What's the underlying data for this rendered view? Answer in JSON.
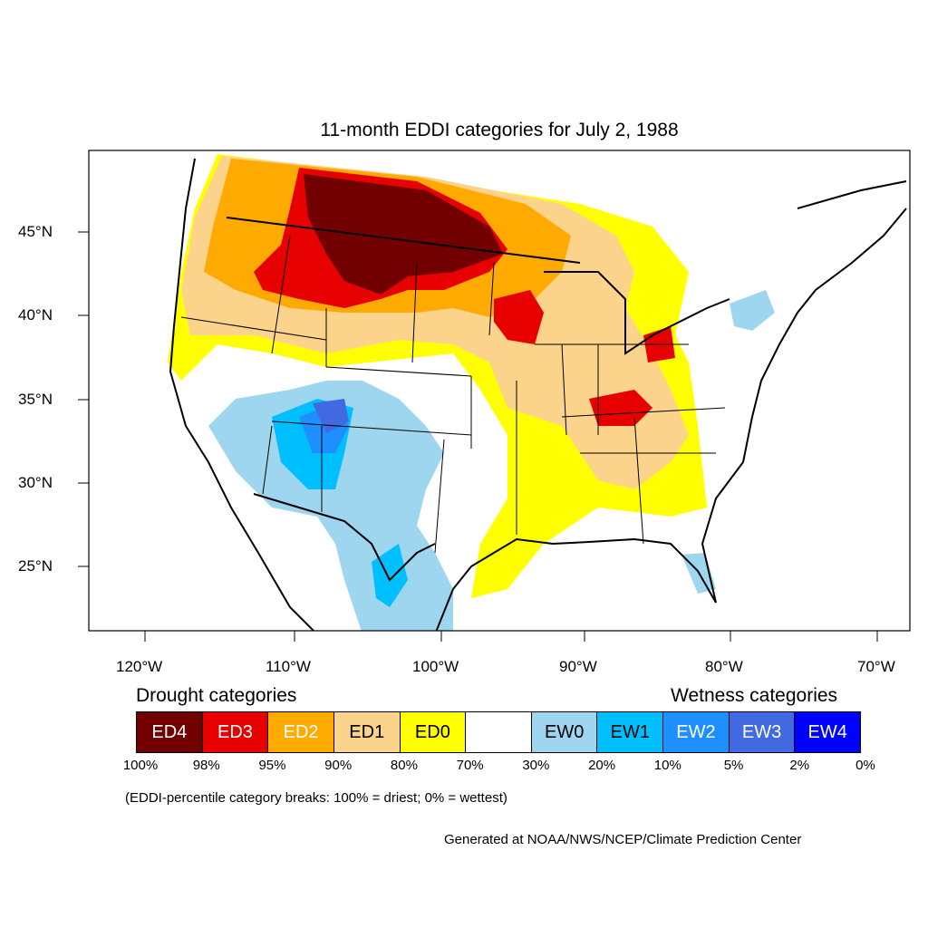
{
  "title": "11-month EDDI categories for July 2, 1988",
  "lat_labels": [
    "45°N",
    "40°N",
    "35°N",
    "30°N",
    "25°N"
  ],
  "lon_labels": [
    "120°W",
    "110°W",
    "100°W",
    "90°W",
    "80°W",
    "70°W"
  ],
  "legend": {
    "drought_heading": "Drought categories",
    "wetness_heading": "Wetness categories",
    "categories": [
      {
        "label": "ED4",
        "color": "#730000",
        "text_color": "#ffffff"
      },
      {
        "label": "ED3",
        "color": "#e60000",
        "text_color": "#ffffff"
      },
      {
        "label": "ED2",
        "color": "#ffaa00",
        "text_color": "#ffffff"
      },
      {
        "label": "ED1",
        "color": "#fcd38a",
        "text_color": "#000000"
      },
      {
        "label": "ED0",
        "color": "#ffff00",
        "text_color": "#000000"
      },
      {
        "label": "",
        "color": "#ffffff",
        "text_color": "#000000"
      },
      {
        "label": "EW0",
        "color": "#9ed5ef",
        "text_color": "#000000"
      },
      {
        "label": "EW1",
        "color": "#00bfff",
        "text_color": "#000000"
      },
      {
        "label": "EW2",
        "color": "#1e8fff",
        "text_color": "#ffffff"
      },
      {
        "label": "EW3",
        "color": "#4169e1",
        "text_color": "#ffffff"
      },
      {
        "label": "EW4",
        "color": "#0000ff",
        "text_color": "#ffffff"
      }
    ],
    "breaks": [
      "100%",
      "98%",
      "95%",
      "90%",
      "80%",
      "70%",
      "30%",
      "20%",
      "10%",
      "5%",
      "2%",
      "0%"
    ]
  },
  "note": "(EDDI-percentile category breaks: 100% = driest; 0% = wettest)",
  "credit": "Generated at NOAA/NWS/NCEP/Climate Prediction Center"
}
